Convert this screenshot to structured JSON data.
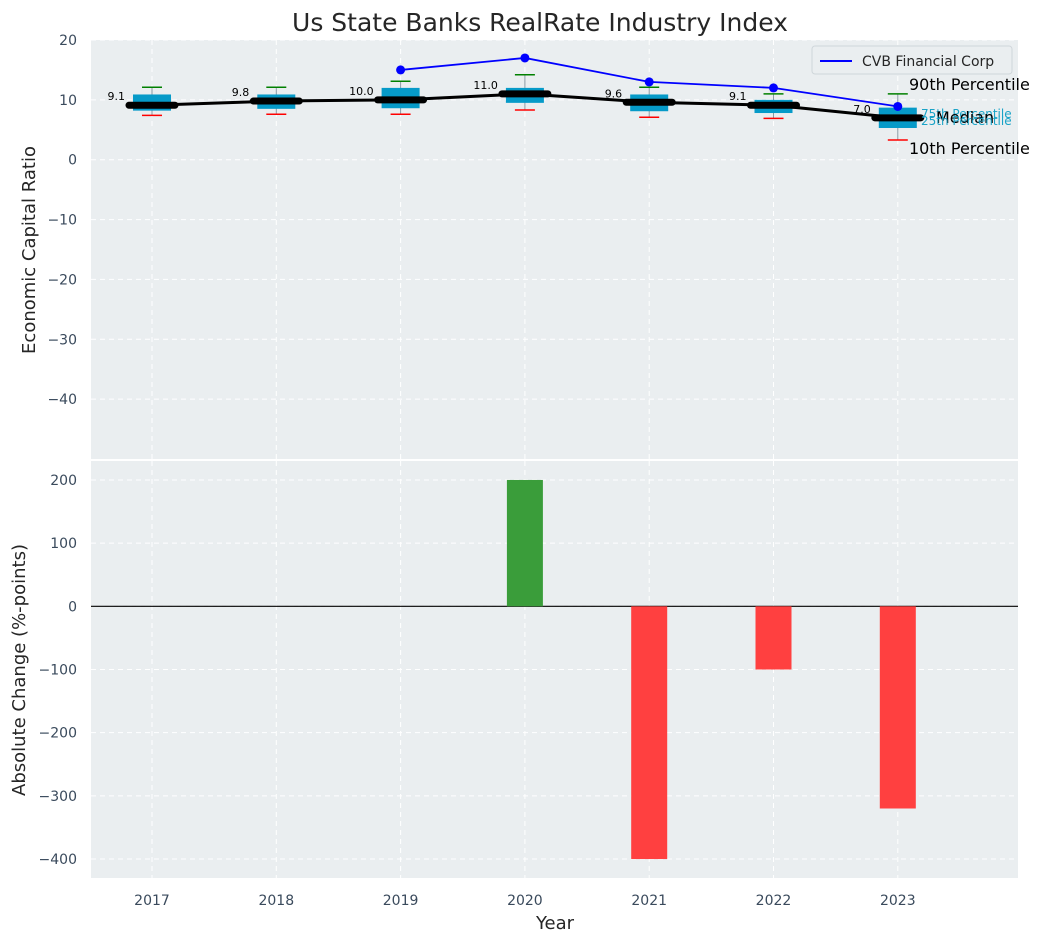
{
  "title": "Us State Banks RealRate Industry Index",
  "chart_data": [
    {
      "type": "box",
      "ylabel": "Economic Capital Ratio",
      "ylim": [
        -50,
        20
      ],
      "yticks": [
        20,
        10,
        0,
        -10,
        -20,
        -30,
        -40
      ],
      "grid": true,
      "categories": [
        "2017",
        "2018",
        "2019",
        "2020",
        "2021",
        "2022",
        "2023"
      ],
      "boxes": [
        {
          "year": "2017",
          "p10": 7.4,
          "p25": 8.2,
          "median": 9.1,
          "p75": 10.9,
          "p90": 12.1
        },
        {
          "year": "2018",
          "p10": 7.6,
          "p25": 8.5,
          "median": 9.8,
          "p75": 10.9,
          "p90": 12.1
        },
        {
          "year": "2019",
          "p10": 7.6,
          "p25": 8.6,
          "median": 10.0,
          "p75": 12.0,
          "p90": 13.1
        },
        {
          "year": "2020",
          "p10": 8.3,
          "p25": 9.5,
          "median": 11.0,
          "p75": 12.0,
          "p90": 14.2
        },
        {
          "year": "2021",
          "p10": 7.1,
          "p25": 8.1,
          "median": 9.6,
          "p75": 10.9,
          "p90": 12.1
        },
        {
          "year": "2022",
          "p10": 6.9,
          "p25": 7.8,
          "median": 9.1,
          "p75": 10.0,
          "p90": 11.0
        },
        {
          "year": "2023",
          "p10": 3.3,
          "p25": 5.3,
          "median": 7.0,
          "p75": 8.7,
          "p90": 11.0
        }
      ],
      "median_labels": [
        "9.1",
        "9.8",
        "10.0",
        "11.0",
        "9.6",
        "9.1",
        "7.0"
      ],
      "company_series": {
        "name": "CVB Financial Corp",
        "color": "#0000ff",
        "x": [
          "2019",
          "2020",
          "2021",
          "2022",
          "2023"
        ],
        "values": [
          15.0,
          17.0,
          13.0,
          12.0,
          8.9
        ]
      },
      "legend": {
        "label": "CVB Financial Corp",
        "position": "top-right"
      },
      "annotations": {
        "p90": "90th Percentile",
        "p75": "75th Percentile",
        "median": "Median",
        "p25": "25th Percentile",
        "p10": "10th Percentile"
      },
      "colors": {
        "box": "#069ac8",
        "median": "#000000",
        "whisker_high": "#008000",
        "whisker_low": "#ff0000",
        "label_blue": "#1aa3c7"
      }
    },
    {
      "type": "bar",
      "ylabel": "Absolute Change (%-points)",
      "xlabel": "Year",
      "ylim": [
        -430,
        230
      ],
      "yticks": [
        200,
        100,
        0,
        -100,
        -200,
        -300,
        -400
      ],
      "grid": true,
      "categories": [
        "2017",
        "2018",
        "2019",
        "2020",
        "2021",
        "2022",
        "2023"
      ],
      "values": [
        null,
        null,
        null,
        200,
        -400,
        -100,
        -320
      ],
      "colors": {
        "positive": "#3a9d3a",
        "negative": "#ff4040"
      }
    }
  ]
}
